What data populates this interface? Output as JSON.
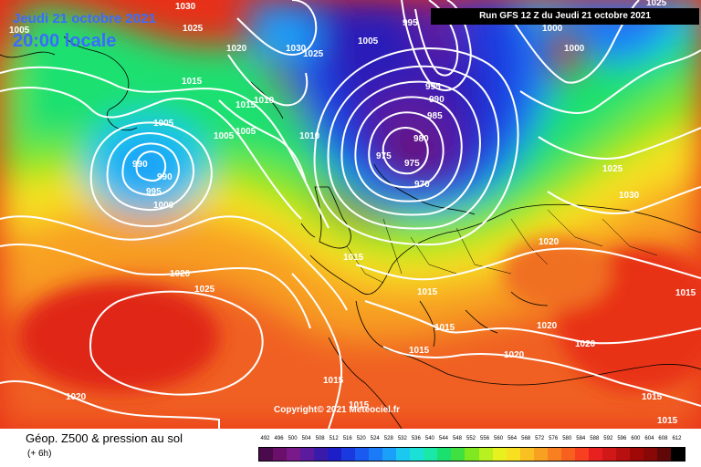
{
  "header": {
    "date": "Jeudi 21 octobre 2021",
    "time": "20:00 locale",
    "run": "Run GFS 12 Z du Jeudi 21 octobre 2021"
  },
  "copyright": "Copyright© 2021 Meteociel.fr",
  "footer": {
    "title": "Géop. Z500 & pression au sol",
    "subtitle": "(+ 6h)"
  },
  "legend": {
    "labels": [
      "492",
      "496",
      "500",
      "504",
      "508",
      "512",
      "516",
      "520",
      "524",
      "528",
      "532",
      "536",
      "540",
      "544",
      "548",
      "552",
      "556",
      "560",
      "564",
      "568",
      "572",
      "576",
      "580",
      "584",
      "588",
      "592",
      "596",
      "600",
      "604",
      "608",
      "612"
    ],
    "colors": [
      "#4b0a4b",
      "#6a0f6a",
      "#7a1a8a",
      "#5c1a9e",
      "#3a1aa8",
      "#1e1ec8",
      "#1a3ae0",
      "#1a5af0",
      "#1a7af8",
      "#1aa0f8",
      "#1ac8f0",
      "#1ae0d8",
      "#1ae8a8",
      "#1ae070",
      "#40e040",
      "#80e820",
      "#b8f020",
      "#e8f020",
      "#f8e020",
      "#f8c020",
      "#f8a020",
      "#f88020",
      "#f86020",
      "#f84020",
      "#e82020",
      "#d01818",
      "#b81010",
      "#a00808",
      "#880808",
      "#600808",
      "#000000"
    ]
  },
  "isobars": [
    {
      "id": "l1",
      "value": "1030"
    },
    {
      "id": "l2",
      "value": "1025"
    },
    {
      "id": "l3",
      "value": "1005"
    },
    {
      "id": "l4",
      "value": "1020"
    },
    {
      "id": "l5",
      "value": "1030"
    },
    {
      "id": "l6",
      "value": "1025"
    },
    {
      "id": "l7",
      "value": "1005"
    },
    {
      "id": "l8",
      "value": "995"
    },
    {
      "id": "l9",
      "value": "1025"
    },
    {
      "id": "l10",
      "value": "1000"
    },
    {
      "id": "l11",
      "value": "1000"
    },
    {
      "id": "l12",
      "value": "995"
    },
    {
      "id": "l13",
      "value": "990"
    },
    {
      "id": "l14",
      "value": "1015"
    },
    {
      "id": "l15",
      "value": "1010"
    },
    {
      "id": "l16",
      "value": "985"
    },
    {
      "id": "l17",
      "value": "1015"
    },
    {
      "id": "l18",
      "value": "1005"
    },
    {
      "id": "l19",
      "value": "1005"
    },
    {
      "id": "l20",
      "value": "1010"
    },
    {
      "id": "l21",
      "value": "980"
    },
    {
      "id": "l22",
      "value": "1005"
    },
    {
      "id": "l23",
      "value": "975"
    },
    {
      "id": "l24",
      "value": "975"
    },
    {
      "id": "l25",
      "value": "970"
    },
    {
      "id": "l26",
      "value": "990"
    },
    {
      "id": "l27",
      "value": "990"
    },
    {
      "id": "l28",
      "value": "995"
    },
    {
      "id": "l29",
      "value": "1000"
    },
    {
      "id": "l30",
      "value": "1025"
    },
    {
      "id": "l31",
      "value": "1030"
    },
    {
      "id": "l32",
      "value": "1020"
    },
    {
      "id": "l33",
      "value": "1015"
    },
    {
      "id": "l34",
      "value": "1020"
    },
    {
      "id": "l35",
      "value": "1025"
    },
    {
      "id": "l36",
      "value": "1015"
    },
    {
      "id": "l37",
      "value": "1015"
    },
    {
      "id": "l38",
      "value": "1015"
    },
    {
      "id": "l39",
      "value": "1020"
    },
    {
      "id": "l40",
      "value": "1020"
    },
    {
      "id": "l41",
      "value": "1020"
    },
    {
      "id": "l42",
      "value": "1020"
    },
    {
      "id": "l43",
      "value": "1015"
    },
    {
      "id": "l44",
      "value": "1015"
    },
    {
      "id": "l45",
      "value": "1015"
    },
    {
      "id": "l46",
      "value": "1015"
    },
    {
      "id": "l47",
      "value": "1015"
    }
  ],
  "colors": {
    "accent": "#3a6cff",
    "isobar": "#ffffff"
  }
}
